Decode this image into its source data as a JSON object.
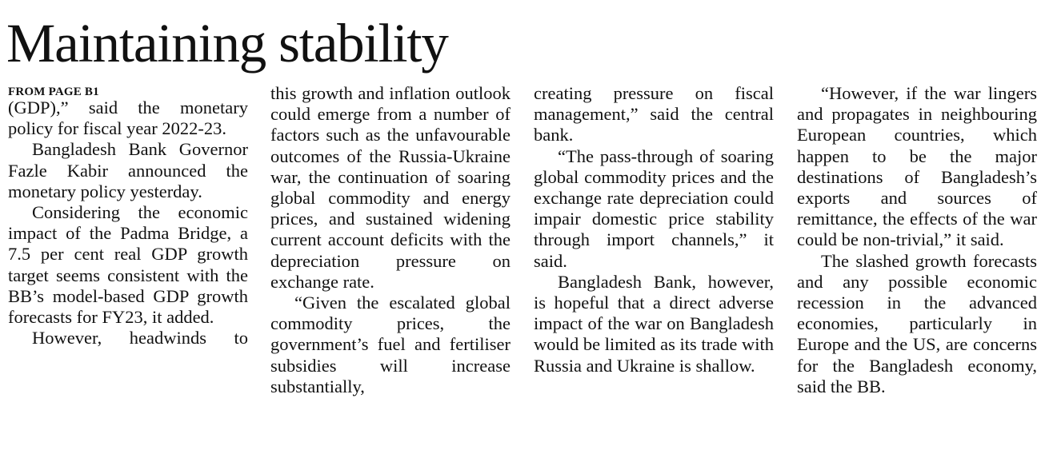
{
  "header": {
    "title": "Maintaining stability"
  },
  "kicker": "FROM PAGE B1",
  "columns": [
    {
      "paragraphs": [
        "(GDP),” said the monetary policy for fiscal year 2022-23.",
        "Bangladesh Bank Governor Fazle Kabir announced the monetary policy yesterday.",
        "Considering the economic impact of the Padma Bridge, a 7.5 per cent real GDP growth target seems consistent with the BB’s model-based GDP growth forecasts for FY23, it added.",
        "However, headwinds to"
      ]
    },
    {
      "paragraphs": [
        "this growth and inflation outlook could emerge from a number of factors such as the unfavourable outcomes of the Russia-Ukraine war, the continuation of soaring global commodity and energy prices, and sustained widening current account deficits with the depreciation pressure on exchange rate.",
        "“Given the escalated global commodity prices, the government’s fuel and fertiliser subsidies will increase substantially,"
      ]
    },
    {
      "paragraphs": [
        "creating pressure on fiscal management,” said the central bank.",
        "“The pass-through of soaring global commodity prices and the exchange rate depreciation could impair domestic price stability through import channels,” it said.",
        "Bangladesh Bank, however, is hopeful that a direct adverse impact of the war on Bangladesh would be limited as its trade with Russia and Ukraine is shallow."
      ]
    },
    {
      "paragraphs": [
        "“However, if the war lingers and propagates in neighbouring European countries, which happen to be the major destinations of Bangladesh’s exports and sources of remittance, the effects of the war could be non-trivial,” it said.",
        "The slashed growth forecasts and any possible economic recession in the advanced economies, particularly in Europe and the US, are concerns for the Bangladesh economy, said the BB."
      ]
    }
  ]
}
